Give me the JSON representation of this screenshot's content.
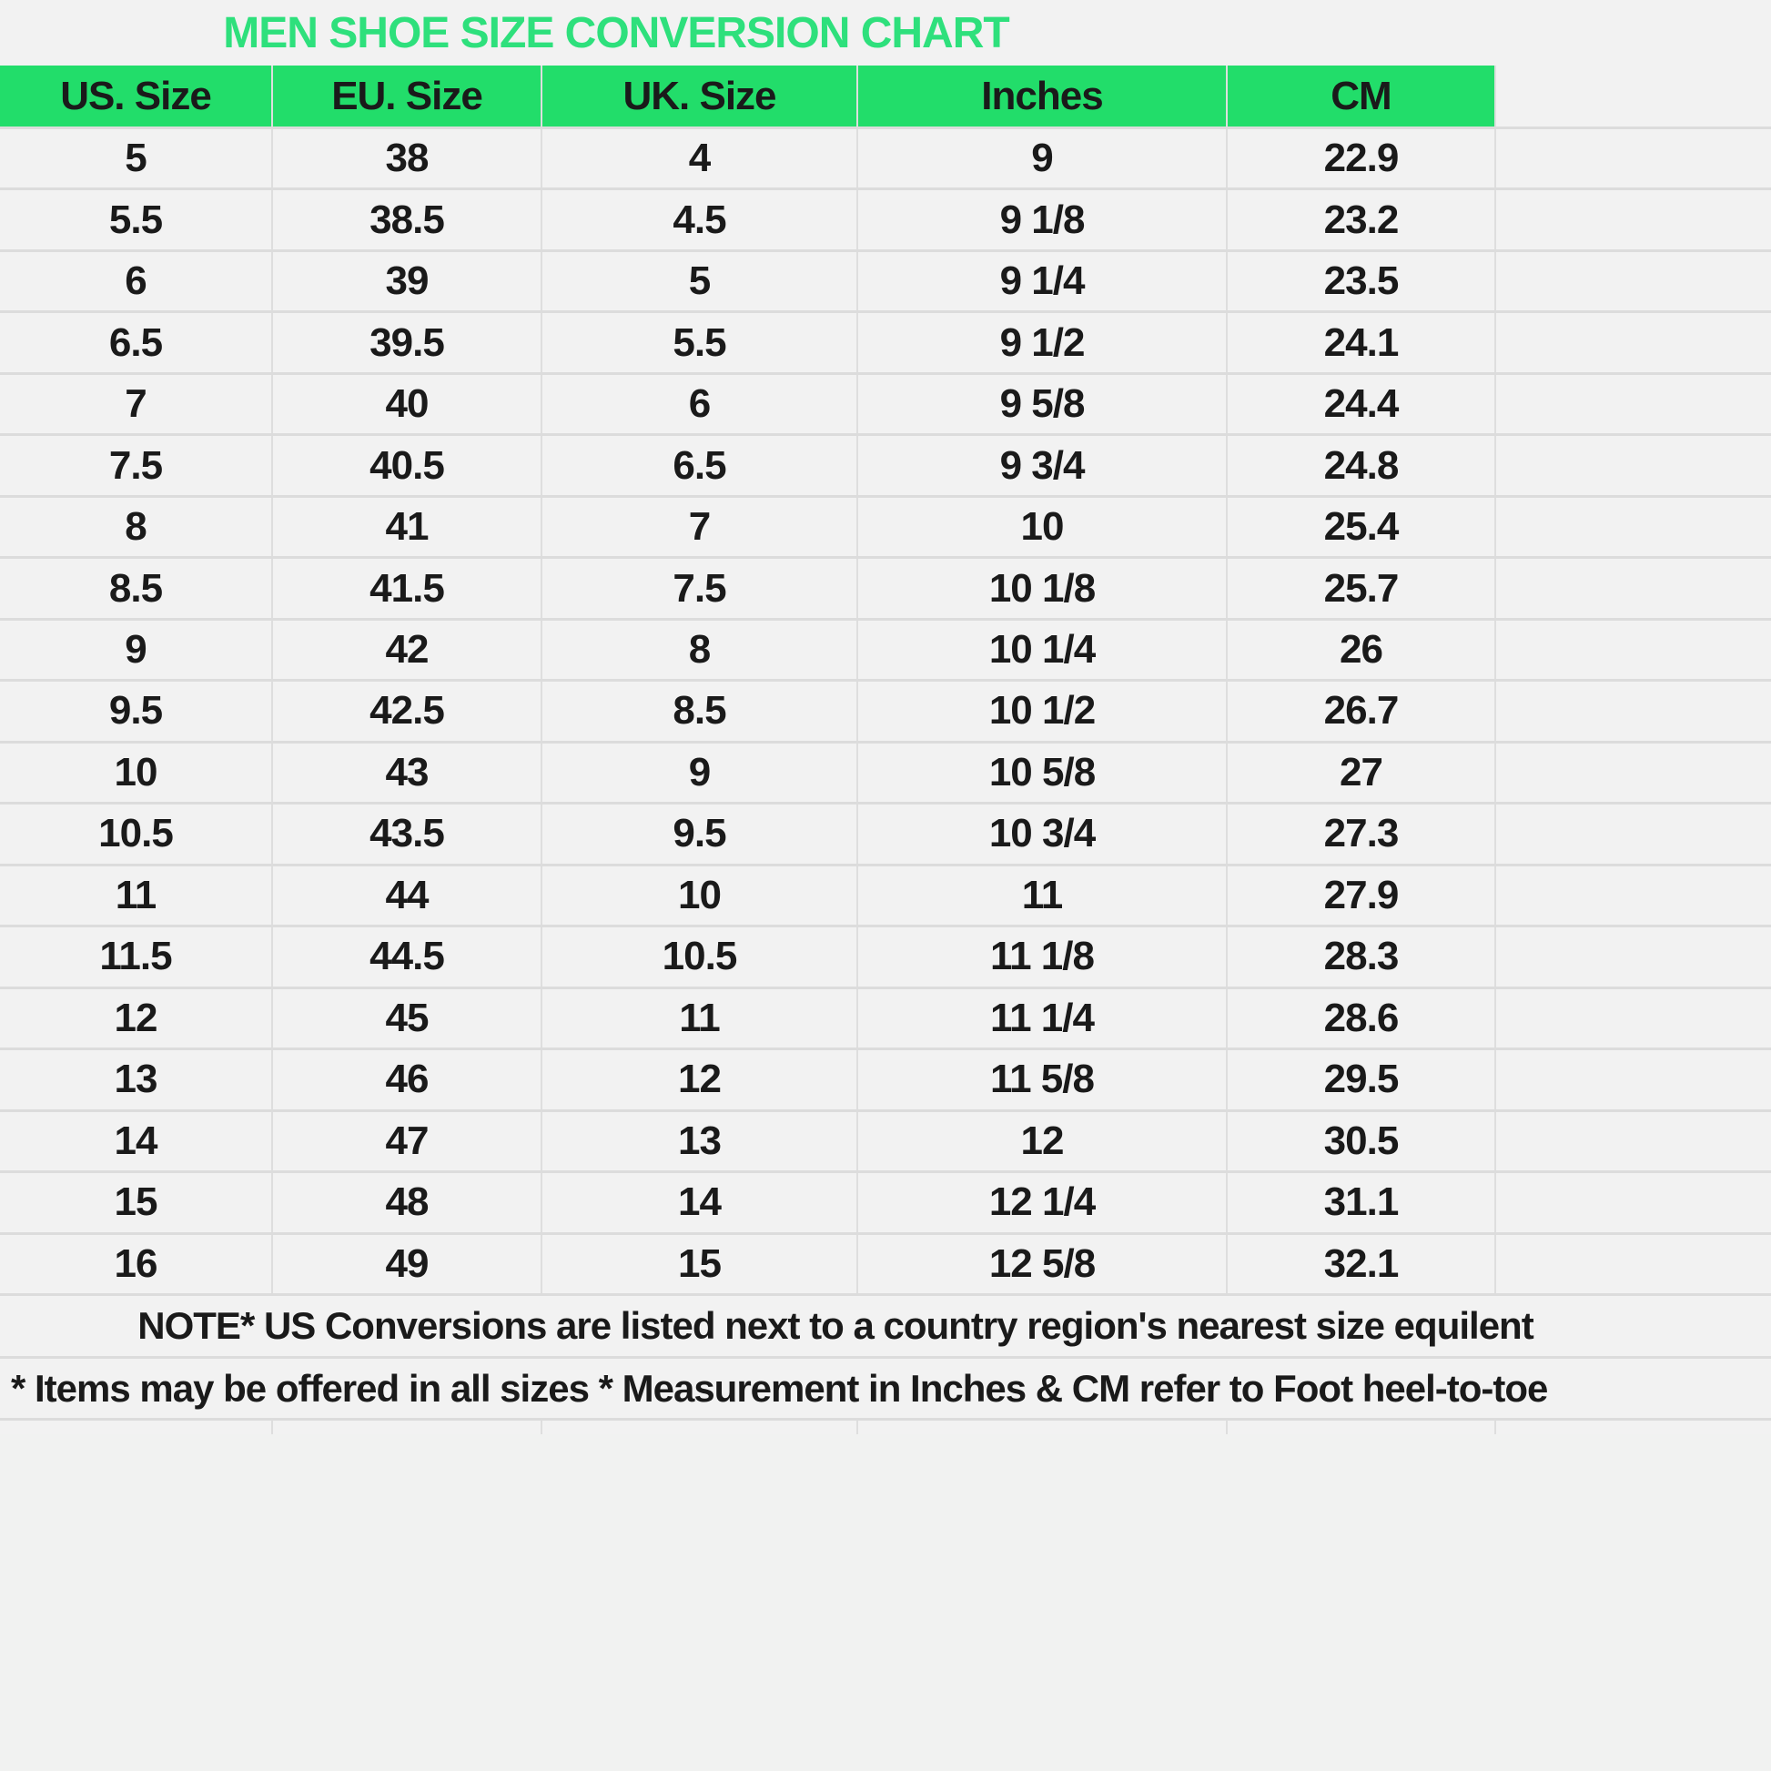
{
  "title": "MEN SHOE SIZE CONVERSION CHART",
  "colors": {
    "title": "#2ee07c",
    "header_bg": "#22dd6a",
    "background": "#f2f2f2"
  },
  "headers": [
    "US. Size",
    "EU. Size",
    "UK. Size",
    "Inches",
    "CM"
  ],
  "rows": [
    [
      "5",
      "38",
      "4",
      "9",
      "22.9"
    ],
    [
      "5.5",
      "38.5",
      "4.5",
      "9 1/8",
      "23.2"
    ],
    [
      "6",
      "39",
      "5",
      "9 1/4",
      "23.5"
    ],
    [
      "6.5",
      "39.5",
      "5.5",
      "9 1/2",
      "24.1"
    ],
    [
      "7",
      "40",
      "6",
      "9 5/8",
      "24.4"
    ],
    [
      "7.5",
      "40.5",
      "6.5",
      "9 3/4",
      "24.8"
    ],
    [
      "8",
      "41",
      "7",
      "10",
      "25.4"
    ],
    [
      "8.5",
      "41.5",
      "7.5",
      "10 1/8",
      "25.7"
    ],
    [
      "9",
      "42",
      "8",
      "10 1/4",
      "26"
    ],
    [
      "9.5",
      "42.5",
      "8.5",
      "10 1/2",
      "26.7"
    ],
    [
      "10",
      "43",
      "9",
      "10 5/8",
      "27"
    ],
    [
      "10.5",
      "43.5",
      "9.5",
      "10 3/4",
      "27.3"
    ],
    [
      "11",
      "44",
      "10",
      "11",
      "27.9"
    ],
    [
      "11.5",
      "44.5",
      "10.5",
      "11 1/8",
      "28.3"
    ],
    [
      "12",
      "45",
      "11",
      "11 1/4",
      "28.6"
    ],
    [
      "13",
      "46",
      "12",
      "11 5/8",
      "29.5"
    ],
    [
      "14",
      "47",
      "13",
      "12",
      "30.5"
    ],
    [
      "15",
      "48",
      "14",
      "12 1/4",
      "31.1"
    ],
    [
      "16",
      "49",
      "15",
      "12 5/8",
      "32.1"
    ]
  ],
  "notes": [
    "NOTE* US Conversions are listed next to a country region's nearest size equilent",
    "* Items may be offered in all sizes * Measurement in Inches & CM refer to Foot heel-to-toe"
  ]
}
